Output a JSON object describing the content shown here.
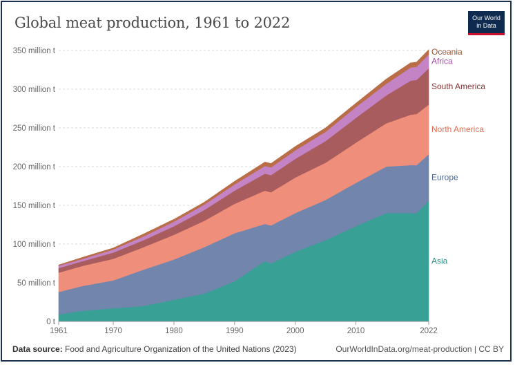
{
  "title": "Global meat production, 1961 to 2022",
  "logo": {
    "line1": "Our World",
    "line2": "in Data"
  },
  "footer": {
    "source_label": "Data source:",
    "source_text": "Food and Agriculture Organization of the United Nations (2023)",
    "url": "OurWorldInData.org/meat-production | CC BY"
  },
  "chart_data": {
    "type": "area",
    "stacked": true,
    "x": [
      1961,
      1965,
      1970,
      1975,
      1980,
      1985,
      1990,
      1995,
      1996,
      2000,
      2005,
      2010,
      2015,
      2019,
      2020,
      2022
    ],
    "xticks": [
      1961,
      1970,
      1980,
      1990,
      2000,
      2010,
      2022
    ],
    "xtick_labels": [
      "1961",
      "1970",
      "1980",
      "1990",
      "2000",
      "2010",
      "2022"
    ],
    "yticks": [
      0,
      50,
      100,
      150,
      200,
      250,
      300,
      350
    ],
    "ytick_labels": [
      "0 t",
      "50 million t",
      "100 million t",
      "150 million t",
      "200 million t",
      "250 million t",
      "300 million t",
      "350 million t"
    ],
    "ylim": [
      0,
      360
    ],
    "grid": "horizontal-dashed",
    "legend": "right-inline",
    "series": [
      {
        "name": "Asia",
        "color": "#38a095",
        "values": [
          9,
          14,
          17,
          20,
          28,
          36,
          52,
          78,
          75,
          90,
          105,
          123,
          140,
          140,
          140,
          156
        ]
      },
      {
        "name": "Europe",
        "color": "#7185ad",
        "values": [
          29,
          32,
          36,
          47,
          52,
          60,
          62,
          48,
          49,
          50,
          52,
          56,
          60,
          62,
          62,
          60
        ]
      },
      {
        "name": "North America",
        "color": "#ef8e7a",
        "values": [
          25,
          26,
          28,
          29,
          32,
          34,
          38,
          43,
          43,
          46,
          48,
          52,
          56,
          65,
          66,
          64
        ]
      },
      {
        "name": "South America",
        "color": "#a85c5e",
        "values": [
          6,
          6,
          8,
          9,
          11,
          14,
          17,
          22,
          22,
          24,
          28,
          32,
          36,
          44,
          44,
          47
        ]
      },
      {
        "name": "Africa",
        "color": "#c483c4",
        "values": [
          3,
          3,
          4,
          5,
          6,
          7,
          8,
          10,
          10,
          11,
          12,
          14,
          15,
          17,
          17,
          18
        ]
      },
      {
        "name": "Oceania",
        "color": "#b96e47",
        "values": [
          1,
          2,
          2,
          3,
          3,
          3,
          4,
          5,
          5,
          5,
          5,
          5,
          6,
          6,
          6,
          6
        ]
      }
    ],
    "label_colors": {
      "Asia": "#2a8f84",
      "Europe": "#4e6a9a",
      "North America": "#e06c52",
      "South America": "#8a3336",
      "Africa": "#a24ea4",
      "Oceania": "#9c5433"
    }
  }
}
